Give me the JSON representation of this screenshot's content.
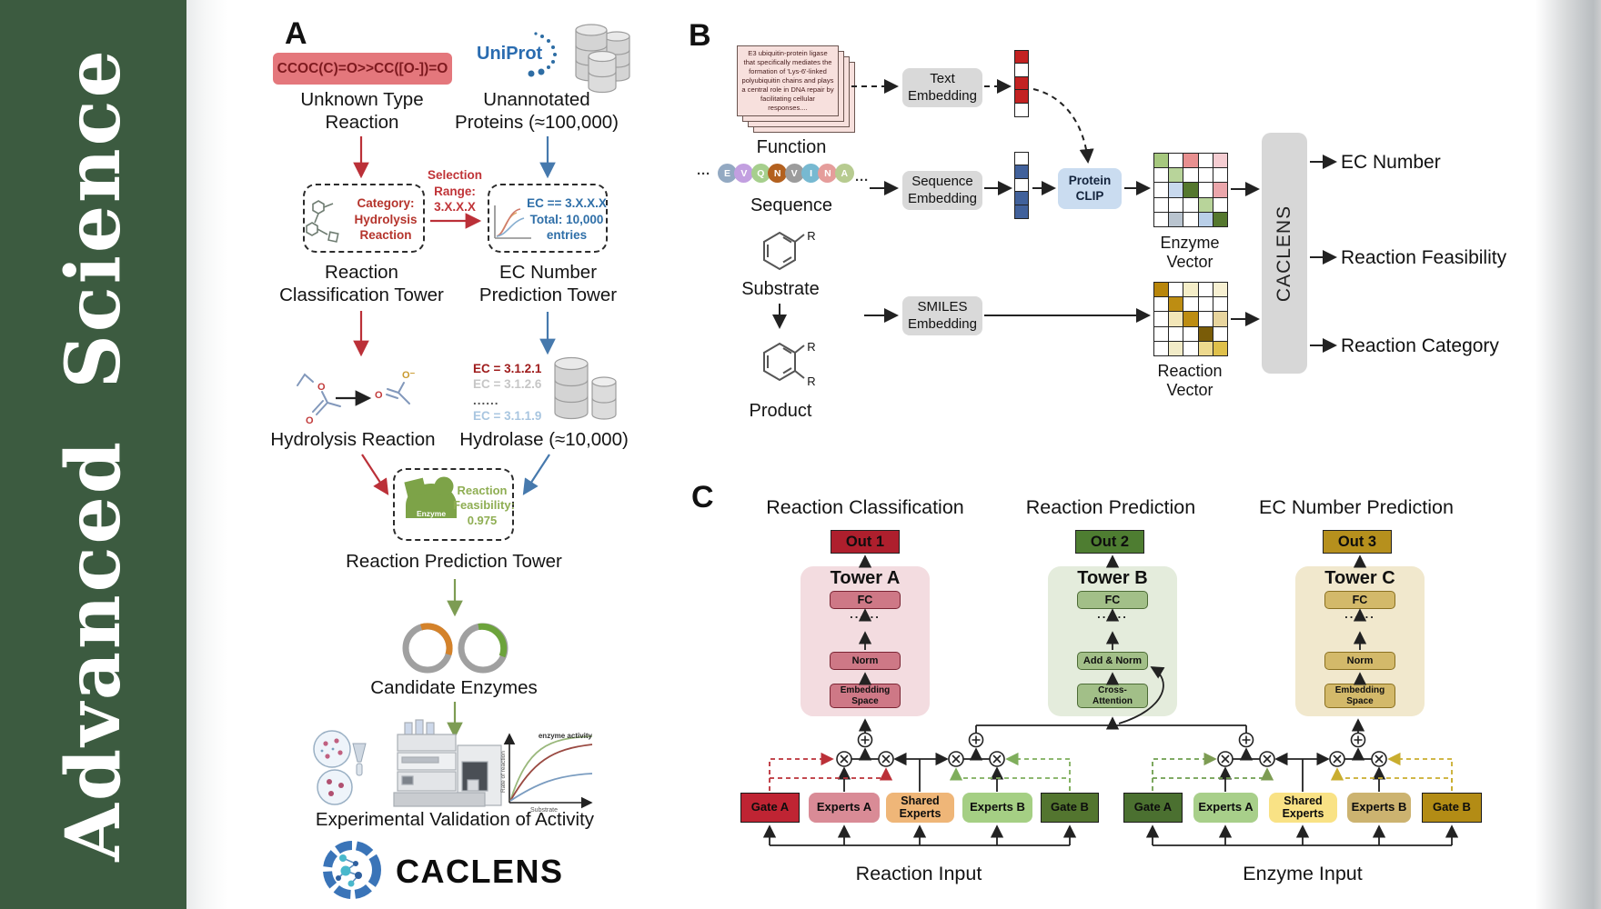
{
  "journal": {
    "name": "Advanced Science"
  },
  "colors": {
    "sidebar-green": "#3c5b40",
    "smiles-bg": "#e4777c",
    "smiles-text": "#7e1a1f",
    "red": "#bb3038",
    "blue": "#4679ad",
    "green": "#7d9c53",
    "uniprot-blue": "#2a6cb0",
    "blue-text": "#2f6fa8",
    "red-text": "#b5342c",
    "green-text": "#8fae53",
    "enzyme-green": "#7da348",
    "gray-box": "#d9d9d9",
    "clip-blue": "#cadcf0",
    "card-pink": "#f7e0dd",
    "ec1": "#9e1b1b",
    "ec2": "#c6c6c6",
    "ecdots": "#555555",
    "ec3": "#a9c6e0",
    "out1": "#ae1f2d",
    "out2": "#4e7d31",
    "out3": "#b6901d",
    "towerA-bg": "#f3dce0",
    "towerA-block": "#ce7886",
    "towerA-border": "#7a2433",
    "towerB-bg": "#e4ecdc",
    "towerB-block": "#a2bf88",
    "towerB-border": "#4c6b35",
    "towerC-bg": "#f1e8cd",
    "towerC-block": "#d3b96a",
    "towerC-border": "#8a7020",
    "gateA1": "#bf2433",
    "expertsA1": "#d98b96",
    "shared1": "#efb678",
    "expertsB1": "#a5cf84",
    "gateB1": "#53752f",
    "gateA2": "#4b7030",
    "expertsA2": "#a8cf8a",
    "shared2": "#f9e285",
    "expertsB2": "#ccb370",
    "gateB2": "#b38c15"
  },
  "panelA": {
    "label": "A",
    "smiles": "CCOC(C)=O>>CC([O-])=O",
    "unknown": "Unknown Type\nReaction",
    "uniprot": "UniProt",
    "unannotated": "Unannotated\nProteins (≈100,000)",
    "category": "Category:\nHydrolysis\nReaction",
    "selection": "Selection\nRange:\n3.X.X.X",
    "ec_filter": "EC == 3.X.X.X\nTotal: 10,000\nentries",
    "tower_classification": "Reaction\nClassification Tower",
    "tower_ec": "EC Number\nPrediction Tower",
    "ec_list": [
      "EC = 3.1.2.1",
      "EC = 3.1.2.6",
      "......",
      "EC = 3.1.1.9"
    ],
    "hydrolysis": "Hydrolysis Reaction",
    "hydrolase": "Hydrolase (≈10,000)",
    "enzyme_chip": "Enzyme",
    "feasibility": "Reaction\nFeasibility:\n0.975",
    "tower_prediction": "Reaction Prediction Tower",
    "candidates": "Candidate Enzymes",
    "graph": {
      "curve_label": "enzyme activity",
      "ylabel": "Rate of reaction",
      "xlabel": "Substrate"
    },
    "validation": "Experimental Validation of Activity",
    "logo_text": "CACLENS"
  },
  "panelB": {
    "label": "B",
    "function_card": "E3 ubiquitin-protein ligase that specifically mediates the formation of 'Lys-6'-linked polyubiquitin chains and plays a central role in DNA repair by facilitating cellular responses....",
    "function": "Function",
    "ellipsis": "···",
    "residues": [
      {
        "t": "E",
        "c": "#93a9c2"
      },
      {
        "t": "V",
        "c": "#c29fe0"
      },
      {
        "t": "Q",
        "c": "#a6cf8d"
      },
      {
        "t": "N",
        "c": "#b3611f"
      },
      {
        "t": "V",
        "c": "#9c9c9c"
      },
      {
        "t": "I",
        "c": "#77b9d1"
      },
      {
        "t": "N",
        "c": "#e59d9b"
      },
      {
        "t": "A",
        "c": "#b7cb90"
      }
    ],
    "sequence": "Sequence",
    "substrate": "Substrate",
    "product": "Product",
    "r_label": "R",
    "text_embedding": "Text\nEmbedding",
    "sequence_embedding": "Sequence\nEmbedding",
    "smiles_embedding": "SMILES\nEmbedding",
    "protein_clip": "Protein\nCLIP",
    "text_vector": [
      "#c32222",
      "#ffffff",
      "#c32222",
      "#c32222",
      "#ffffff"
    ],
    "seq_vector": [
      "#ffffff",
      "#41619b",
      "#ffffff",
      "#41619b",
      "#41619b"
    ],
    "enzyme_matrix": [
      [
        "#a6c87e",
        "#ffffff",
        "#e89090",
        "#ffffff",
        "#f5cdd2"
      ],
      [
        "#ffffff",
        "#b8d49a",
        "#ffffff",
        "#ffffff",
        "#ffffff"
      ],
      [
        "#ffffff",
        "#c8d9ee",
        "#55782e",
        "#ffffff",
        "#eba6ab"
      ],
      [
        "#ffffff",
        "#ffffff",
        "#ffffff",
        "#b8d49a",
        "#ffffff"
      ],
      [
        "#ffffff",
        "#b9c4cf",
        "#ffffff",
        "#b9cfe8",
        "#55782e"
      ]
    ],
    "reaction_matrix": [
      [
        "#b8860b",
        "#ffffff",
        "#f5eec8",
        "#ffffff",
        "#f7f0d2"
      ],
      [
        "#ffffff",
        "#bd8d12",
        "#ffffff",
        "#ffffff",
        "#ffffff"
      ],
      [
        "#ffffff",
        "#f2e6b8",
        "#bd8d12",
        "#ffffff",
        "#e8d59e"
      ],
      [
        "#ffffff",
        "#ffffff",
        "#ffffff",
        "#7a5c08",
        "#ffffff"
      ],
      [
        "#ffffff",
        "#f2ecc8",
        "#ffffff",
        "#edd98e",
        "#dfc04a"
      ]
    ],
    "enzyme_vector_label": "Enzyme Vector",
    "reaction_vector_label": "Reaction Vector",
    "caclens": "CACLENS",
    "outputs": [
      "EC Number",
      "Reaction Feasibility",
      "Reaction Category"
    ]
  },
  "panelC": {
    "label": "C",
    "titles": [
      "Reaction Classification",
      "Reaction Prediction",
      "EC Number Prediction"
    ],
    "outs": [
      "Out 1",
      "Out 2",
      "Out 3"
    ],
    "towers": [
      {
        "name": "Tower A",
        "fc": "FC",
        "dots": "......",
        "mid": "Norm",
        "bottom": "Embedding\nSpace"
      },
      {
        "name": "Tower B",
        "fc": "FC",
        "dots": "......",
        "mid": "Add & Norm",
        "bottom": "Cross-\nAttention"
      },
      {
        "name": "Tower C",
        "fc": "FC",
        "dots": "......",
        "mid": "Norm",
        "bottom": "Embedding\nSpace"
      }
    ],
    "groups": [
      {
        "gateA": "Gate A",
        "expertsA": "Experts A",
        "shared": "Shared\nExperts",
        "expertsB": "Experts B",
        "gateB": "Gate B",
        "input": "Reaction Input"
      },
      {
        "gateA": "Gate A",
        "expertsA": "Experts A",
        "shared": "Shared\nExperts",
        "expertsB": "Experts B",
        "gateB": "Gate B",
        "input": "Enzyme Input"
      }
    ]
  }
}
